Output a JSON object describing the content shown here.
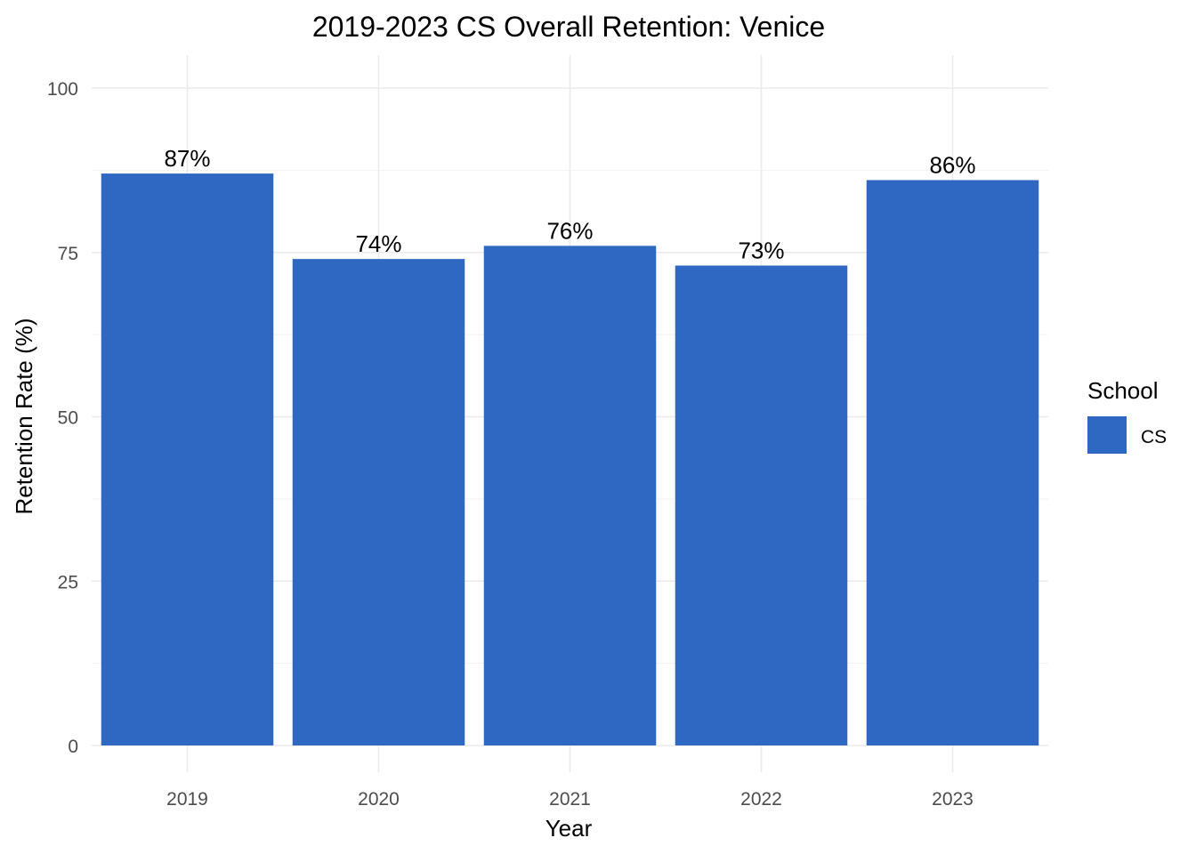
{
  "chart_data": {
    "type": "bar",
    "title": "2019-2023 CS Overall Retention: Venice",
    "xlabel": "Year",
    "ylabel": "Retention Rate (%)",
    "categories": [
      "2019",
      "2020",
      "2021",
      "2022",
      "2023"
    ],
    "series": [
      {
        "name": "CS",
        "values": [
          87,
          74,
          76,
          73,
          86
        ],
        "color": "#2e68c3"
      }
    ],
    "data_labels": [
      "87%",
      "74%",
      "76%",
      "73%",
      "86%"
    ],
    "ylim": [
      0,
      100
    ],
    "yticks": [
      0,
      25,
      50,
      75,
      100
    ],
    "ytick_labels": [
      "0",
      "25",
      "50",
      "75",
      "100"
    ],
    "grid": true,
    "legend": {
      "title": "School",
      "position": "right",
      "entries": [
        {
          "label": "CS",
          "color": "#2e68c3"
        }
      ]
    }
  }
}
